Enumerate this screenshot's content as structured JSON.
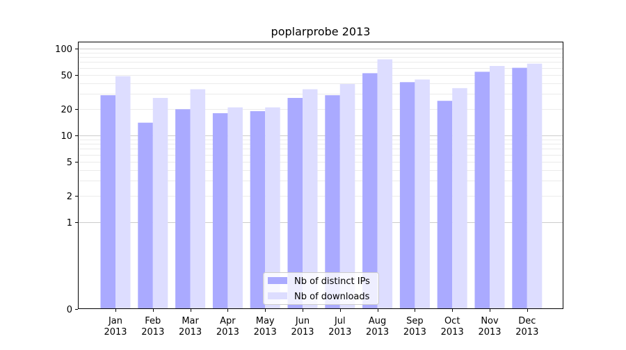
{
  "chart_data": {
    "type": "bar",
    "title": "poplarprobe 2013",
    "xlabel": "",
    "ylabel": "",
    "y_scale": "symlog",
    "ylim": [
      0,
      120
    ],
    "y_ticks": [
      0,
      1,
      2,
      5,
      10,
      20,
      50,
      100
    ],
    "grid": "horizontal",
    "legend_position": "bottom-center",
    "categories": [
      "Jan\n2013",
      "Feb\n2013",
      "Mar\n2013",
      "Apr\n2013",
      "May\n2013",
      "Jun\n2013",
      "Jul\n2013",
      "Aug\n2013",
      "Sep\n2013",
      "Oct\n2013",
      "Nov\n2013",
      "Dec\n2013"
    ],
    "series": [
      {
        "name": "Nb of distinct IPs",
        "color": "#aaaaff",
        "values": [
          29,
          14,
          20,
          18,
          19,
          27,
          29,
          52,
          41,
          25,
          54,
          60
        ]
      },
      {
        "name": "Nb of downloads",
        "color": "#ddddff",
        "values": [
          48,
          27,
          34,
          21,
          21,
          34,
          39,
          75,
          44,
          35,
          63,
          67
        ]
      }
    ]
  }
}
